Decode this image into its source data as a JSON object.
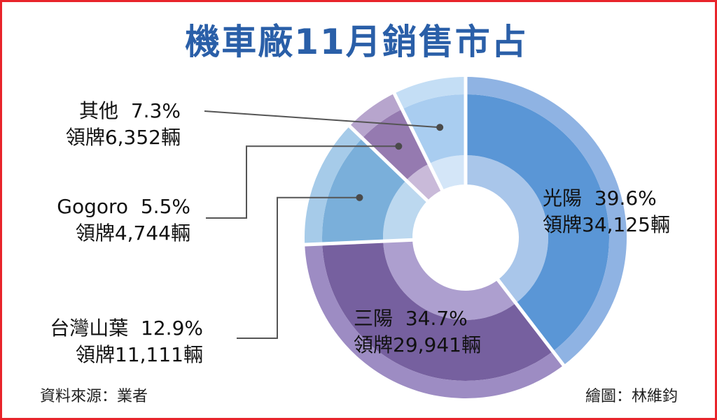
{
  "chart_data": {
    "type": "pie",
    "title": "機車廠11月銷售市占",
    "slices": [
      {
        "key": "kymco",
        "label": "光陽",
        "percent": "39.6%",
        "value": 39.6,
        "plates_label": "領牌34,125輛",
        "plates": 34125,
        "color": "#5a96d6",
        "outer_color": "#8fb3e3",
        "inner_color": "#a9c6ea"
      },
      {
        "key": "sym",
        "label": "三陽",
        "percent": "34.7%",
        "value": 34.7,
        "plates_label": "領牌29,941輛",
        "plates": 29941,
        "color": "#76609f",
        "outer_color": "#9d8cc3",
        "inner_color": "#ad9fcf"
      },
      {
        "key": "yamaha",
        "label": "台灣山葉",
        "percent": "12.9%",
        "value": 12.9,
        "plates_label": "領牌11,111輛",
        "plates": 11111,
        "color": "#7aafda",
        "outer_color": "#a6cbe9",
        "inner_color": "#bcd8ef"
      },
      {
        "key": "gogoro",
        "label": "Gogoro",
        "percent": "5.5%",
        "value": 5.5,
        "plates_label": "領牌4,744輛",
        "plates": 4744,
        "color": "#957ab0",
        "outer_color": "#b7a5cd",
        "inner_color": "#c9bad9"
      },
      {
        "key": "other",
        "label": "其他",
        "percent": "7.3%",
        "value": 7.3,
        "plates_label": "領牌6,352輛",
        "plates": 6352,
        "color": "#a9cdf0",
        "outer_color": "#c4def5",
        "inner_color": "#d4e6f8"
      }
    ]
  },
  "footer": {
    "source": "資料來源：業者",
    "credit": "繪圖：林維鈞"
  }
}
